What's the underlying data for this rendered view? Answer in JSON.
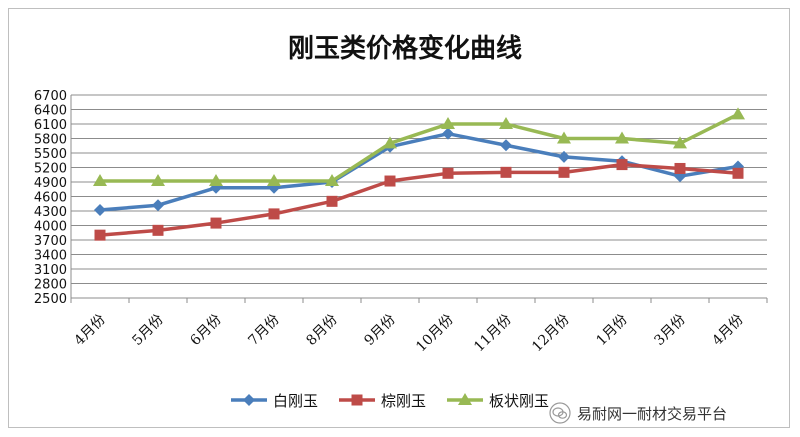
{
  "chart_data": {
    "type": "line",
    "title": "刚玉类价格变化曲线",
    "categories": [
      "4月份",
      "5月份",
      "6月份",
      "7月份",
      "8月份",
      "9月份",
      "10月份",
      "11月份",
      "12月份",
      "1月份",
      "3月份",
      "4月份"
    ],
    "yticks": [
      2500,
      2800,
      3100,
      3400,
      3700,
      4000,
      4300,
      4600,
      4900,
      5200,
      5500,
      5800,
      6100,
      6400,
      6700
    ],
    "ylim": [
      2500,
      6700
    ],
    "grid": true,
    "legend_position": "bottom",
    "series": [
      {
        "name": "白刚玉",
        "color": "#4a7ebb",
        "marker": "diamond",
        "values": [
          4320,
          4420,
          4780,
          4780,
          4900,
          5630,
          5900,
          5660,
          5420,
          5330,
          5020,
          5220
        ]
      },
      {
        "name": "棕刚玉",
        "color": "#be4b48",
        "marker": "square",
        "values": [
          3800,
          3900,
          4050,
          4240,
          4500,
          4920,
          5080,
          5100,
          5100,
          5260,
          5180,
          5080
        ]
      },
      {
        "name": "板状刚玉",
        "color": "#98b954",
        "marker": "triangle",
        "values": [
          4920,
          4920,
          4920,
          4920,
          4920,
          5700,
          6100,
          6100,
          5800,
          5800,
          5700,
          6300
        ]
      }
    ]
  },
  "watermark": {
    "text": "易耐网一耐材交易平台",
    "icon": "wechat-icon"
  }
}
